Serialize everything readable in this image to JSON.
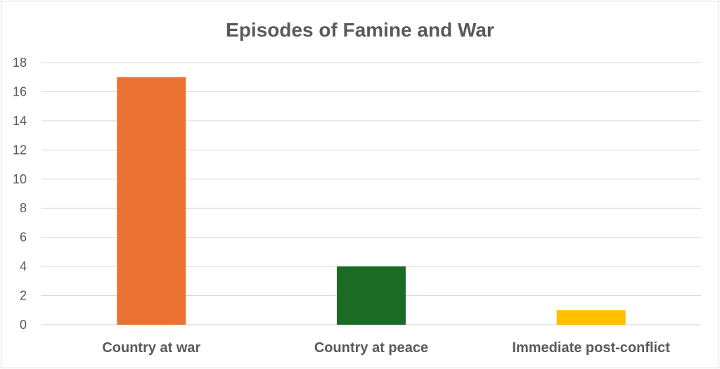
{
  "chart_data": {
    "type": "bar",
    "title": "Episodes of Famine and War",
    "categories": [
      "Country at war",
      "Country at peace",
      "Immediate post-conflict"
    ],
    "values": [
      17,
      4,
      1
    ],
    "colors": [
      "#ea7333",
      "#1c6b25",
      "#ffc000"
    ],
    "ylim": [
      0,
      18
    ],
    "yticks": [
      "0",
      "2",
      "4",
      "6",
      "8",
      "10",
      "12",
      "14",
      "16",
      "18"
    ],
    "grid": true,
    "legend": "none",
    "xlabel": "",
    "ylabel": ""
  }
}
